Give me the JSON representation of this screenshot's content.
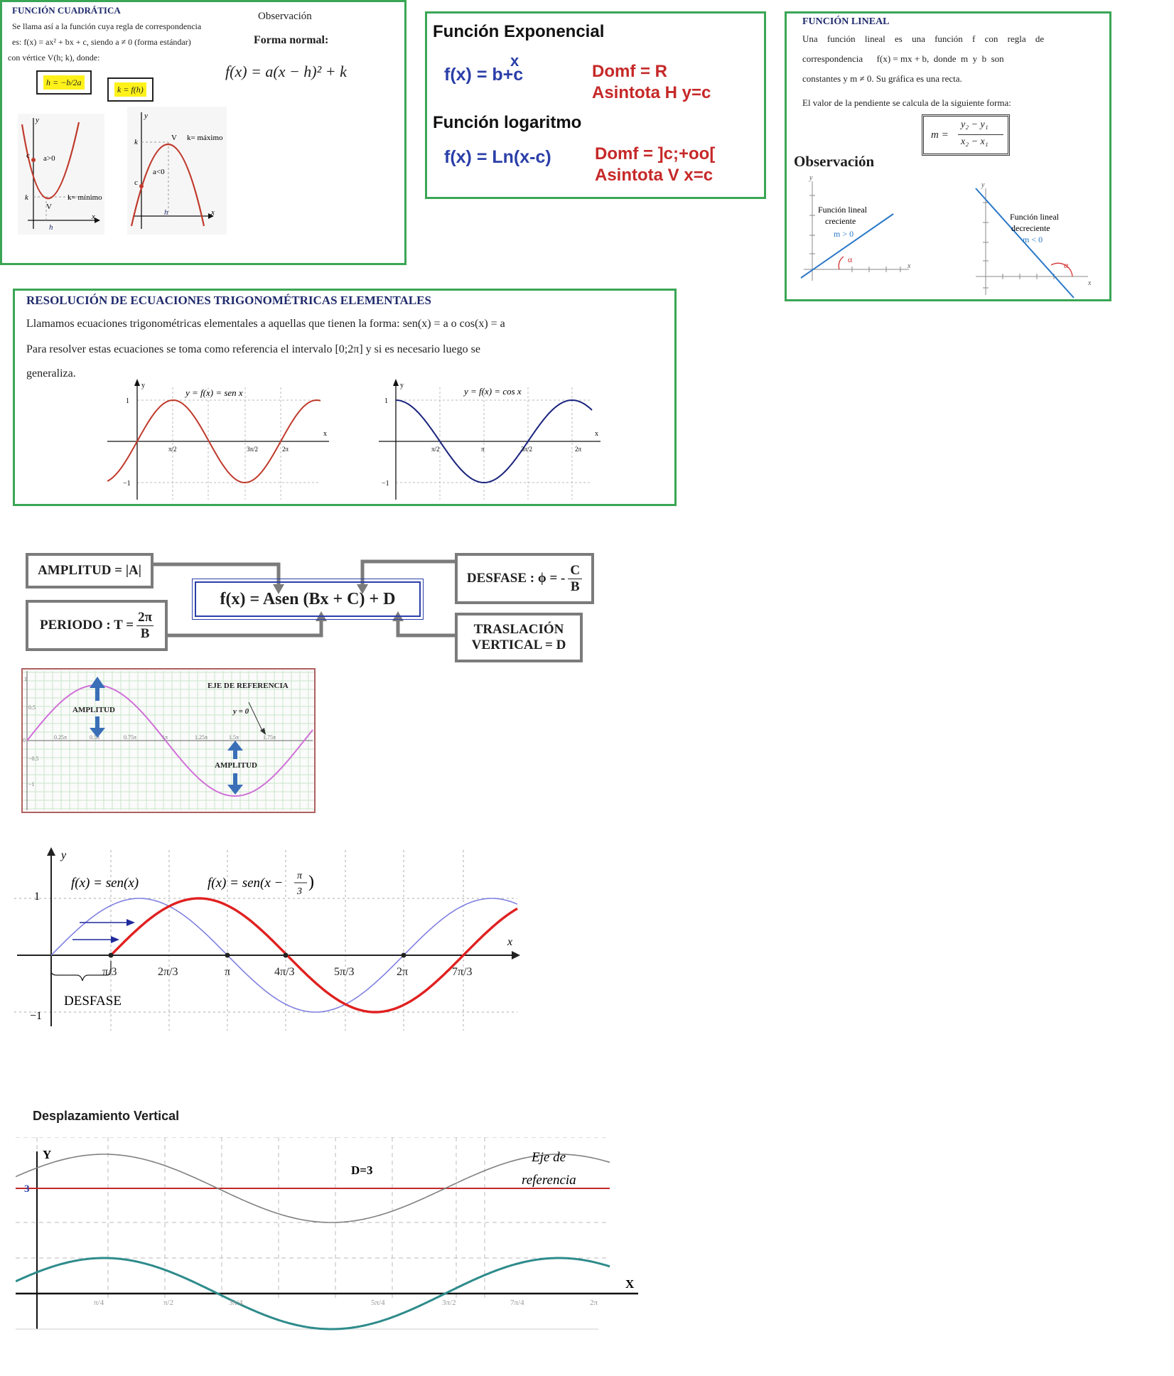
{
  "quadratic": {
    "title": "FUNCIÓN CUADRÁTICA",
    "line1": "Se llama así a la función cuya regla de correspondencia",
    "line2": "es: f(x) = ax² + bx + c, siendo a ≠ 0 (forma estándar)",
    "line3": "con vértice V(h; k), donde:",
    "h_formula": "h = −b/2a",
    "k_formula": "k = f(h)",
    "observation": "Observación",
    "normal_form_label": "Forma normal:",
    "normal_form": "f(x) = a(x − h)² + k",
    "graph1": {
      "c": "c",
      "a": "a>0",
      "k": "k",
      "kmin": "k= mínimo",
      "v": "V",
      "h": "h",
      "y": "y",
      "x": "x"
    },
    "graph2": {
      "k": "k",
      "v": "V",
      "kmax": "k= máximo",
      "a": "a<0",
      "c": "c",
      "h": "h",
      "y": "y",
      "x": "x"
    }
  },
  "exponential": {
    "title": "Función Exponencial",
    "formula_base": "f(x) = b",
    "formula_exp": "x",
    "formula_tail": "+c",
    "domain": "Domf = R",
    "asymptote": "Asintota H  y=c",
    "log_title": "Función logaritmo",
    "log_formula": "f(x) = Ln(x-c)",
    "log_domain": "Domf = ]c;+oo[",
    "log_asymptote": "Asintota  V  x=c"
  },
  "linear": {
    "title": "FUNCIÓN LINEAL",
    "line1": "Una función lineal es una función f con regla de",
    "line2": "correspondencia      f(x) = mx + b,  donde  m  y  b  son",
    "line3": "constantes y m ≠ 0. Su gráfica es una recta.",
    "slope_text": "El valor de la pendiente se calcula de la siguiente forma:",
    "slope_formula_num": "y₂ − y₁",
    "slope_formula_den": "x₂ − x₁",
    "slope_m": "m =",
    "observation": "Observación",
    "inc_label1": "Función lineal",
    "inc_label2": "creciente",
    "inc_m": "m > 0",
    "dec_label1": "Función lineal",
    "dec_label2": "decreciente",
    "dec_m": "m < 0",
    "alpha": "α",
    "y": "y",
    "x": "x"
  },
  "trig": {
    "title": "RESOLUCIÓN DE ECUACIONES TRIGONOMÉTRICAS ELEMENTALES",
    "line1": "Llamamos ecuaciones trigonométricas elementales a aquellas que tienen la forma:  sen(x) = a  o  cos(x) = a",
    "line2": "Para resolver estas ecuaciones se toma como referencia el intervalo [0;2π] y si es necesario luego se",
    "line3": "generaliza.",
    "sin_label": "y = f(x) = sen x",
    "cos_label": "y = f(x) = cos x",
    "tick_pos": "1",
    "tick_neg": "−1",
    "sin_ticks": [
      "π/2",
      "π",
      "3π/2",
      "2π"
    ],
    "cos_ticks": [
      "π/2",
      "π",
      "3π/2",
      "2π"
    ],
    "y": "y",
    "x": "x"
  },
  "parameters": {
    "amplitude": "AMPLITUD = |A|",
    "period_label": "PERIODO : T =",
    "period_num": "2π",
    "period_den": "B",
    "main_formula": "f(x) = Asen (Bx + C) + D",
    "phase_label": "DESFASE : ϕ = -",
    "phase_num": "C",
    "phase_den": "B",
    "vertical1": "TRASLACIÓN",
    "vertical2": "VERTICAL = D"
  },
  "amplitude_graph": {
    "ref_axis": "EJE DE REFERENCIA",
    "amplitude": "AMPLITUD",
    "y0": "y = 0",
    "y_ticks": [
      "1",
      "0.5",
      "0",
      "−0.5",
      "−1"
    ],
    "x_ticks": [
      "0.25π",
      "0.5π",
      "0.75π",
      "1π",
      "1.25π",
      "1.5π",
      "1.75π",
      "2π"
    ]
  },
  "phase_graph": {
    "label1": "f(x) = sen(x)",
    "label2_head": "f(x) = sen(x −",
    "label2_num": "π",
    "label2_den": "3",
    "desfase": "DESFASE",
    "x_ticks": [
      "π/3",
      "2π/3",
      "π",
      "4π/3",
      "5π/3",
      "2π",
      "7π/3"
    ],
    "y_ticks": [
      "1",
      "−1"
    ],
    "y": "y",
    "x": "x"
  },
  "vertical_graph": {
    "title": "Desplazamiento Vertical",
    "y": "Y",
    "x": "X",
    "three": "3",
    "d3": "D=3",
    "ref1": "Eje de",
    "ref2": "referencia",
    "x_ticks": [
      "π/4",
      "π/2",
      "3π/4",
      "5π/4",
      "3π/2",
      "7π/4",
      "2π"
    ]
  },
  "colors": {
    "green_border": "#3aa655",
    "navy": "#1f2a6b",
    "blue": "#2b3fa8",
    "red": "#c62828",
    "sin_red": "#c0392b",
    "cos_blue": "#1a237e",
    "magenta": "#d070d8",
    "teal": "#2e8b8b",
    "gray": "#7b7b7b"
  }
}
